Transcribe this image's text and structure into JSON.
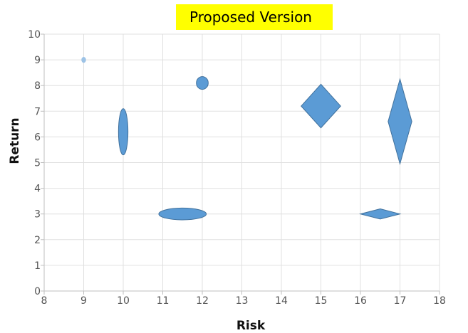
{
  "chart_data": {
    "type": "scatter",
    "title": "Proposed Version",
    "xlabel": "Risk",
    "ylabel": "Return",
    "xlim": [
      8,
      18
    ],
    "ylim": [
      0,
      10
    ],
    "x_ticks": [
      8,
      9,
      10,
      11,
      12,
      13,
      14,
      15,
      16,
      17,
      18
    ],
    "y_ticks": [
      0,
      1,
      2,
      3,
      4,
      5,
      6,
      7,
      8,
      9,
      10
    ],
    "grid": true,
    "legend": "none",
    "colors": {
      "title_background": "#ffff00",
      "marker_fill": "#5b9bd5",
      "marker_stroke": "#41719c",
      "grid": "#e0e0e0",
      "axis": "#bfbfbf"
    },
    "points": [
      {
        "x": 9,
        "y": 9,
        "shape": "circle",
        "color": "#9dc3e6",
        "x_err": 0.05,
        "y_err": 0.1
      },
      {
        "x": 10,
        "y": 6.2,
        "shape": "ellipse",
        "x_err": 0.12,
        "y_err": 0.9
      },
      {
        "x": 11.5,
        "y": 3,
        "shape": "ellipse",
        "x_err": 0.6,
        "y_err": 0.23
      },
      {
        "x": 12,
        "y": 8.1,
        "shape": "circle",
        "x_err": 0.15,
        "y_err": 0.25
      },
      {
        "x": 15,
        "y": 7.2,
        "shape": "diamond",
        "x_err": 0.5,
        "y_err": 0.85
      },
      {
        "x": 16.5,
        "y": 3,
        "shape": "diamond",
        "x_err": 0.5,
        "y_err": 0.2
      },
      {
        "x": 17,
        "y": 6.6,
        "shape": "diamond",
        "x_err": 0.3,
        "y_err": 1.65
      }
    ]
  }
}
